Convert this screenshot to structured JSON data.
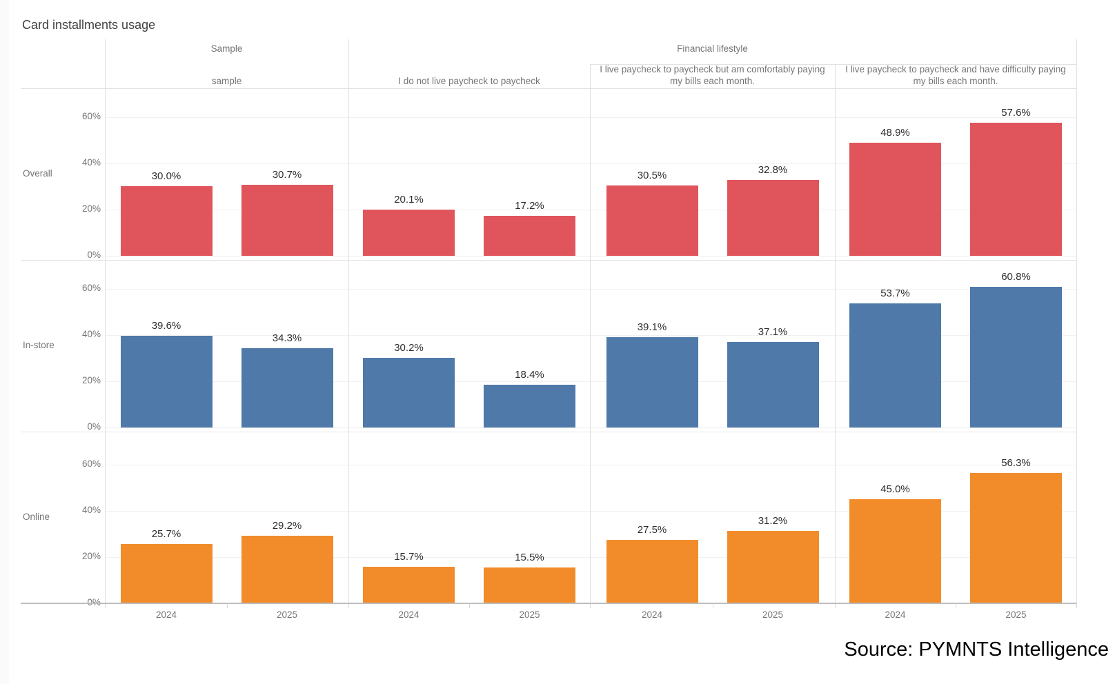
{
  "title": "Card installments usage",
  "source": "Source: PYMNTS Intelligence",
  "chart_data": {
    "type": "bar",
    "title": "Card installments usage",
    "facet_layout": "rows are purchase channels, columns are respondent segments, each cell has one bar per year",
    "col_groups": [
      {
        "label": "Sample",
        "span": [
          0,
          1
        ]
      },
      {
        "label": "Financial lifestyle",
        "span": [
          1,
          4
        ]
      }
    ],
    "facet_cols": [
      "sample",
      "I do not live paycheck to paycheck",
      "I live paycheck to paycheck but am comfortably paying my bills each month.",
      "I live paycheck to paycheck and have difficulty paying my bills each month."
    ],
    "x_categories": [
      "2024",
      "2025"
    ],
    "y_ticks": [
      0,
      20,
      40,
      60
    ],
    "y_tick_suffix": "%",
    "ylim": [
      0,
      72
    ],
    "grid": true,
    "legend": "none",
    "value_label_format": "one decimal place with % suffix",
    "rows": [
      {
        "label": "Overall",
        "color": "#e0555b",
        "values": [
          [
            30.0,
            30.7
          ],
          [
            20.1,
            17.2
          ],
          [
            30.5,
            32.8
          ],
          [
            48.9,
            57.6
          ]
        ]
      },
      {
        "label": "In-store",
        "color": "#4e79a8",
        "values": [
          [
            39.6,
            34.3
          ],
          [
            30.2,
            18.4
          ],
          [
            39.1,
            37.1
          ],
          [
            53.7,
            60.8
          ]
        ]
      },
      {
        "label": "Online",
        "color": "#f28c2b",
        "values": [
          [
            25.7,
            29.2
          ],
          [
            15.7,
            15.5
          ],
          [
            27.5,
            31.2
          ],
          [
            45.0,
            56.3
          ]
        ]
      }
    ]
  }
}
